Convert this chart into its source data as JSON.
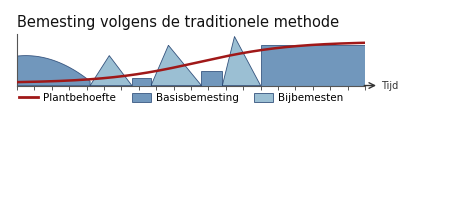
{
  "title": "Bemesting volgens de traditionele methode",
  "title_fontsize": 10.5,
  "xlabel_arrow": "Tijd",
  "background_color": "#ffffff",
  "base_color": "#4d7dab",
  "base_edge": "#1a3a6a",
  "bij_color": "#8ab4cc",
  "bij_edge": "#1a3a6a",
  "line_color": "#a01818",
  "line_width": 1.8,
  "legend_items": [
    "Plantbehoefte",
    "Basisbemesting",
    "Bijbemesten"
  ],
  "figsize": [
    4.7,
    2.12
  ],
  "dpi": 100,
  "xlim": [
    0,
    10
  ],
  "ylim": [
    0,
    10
  ]
}
